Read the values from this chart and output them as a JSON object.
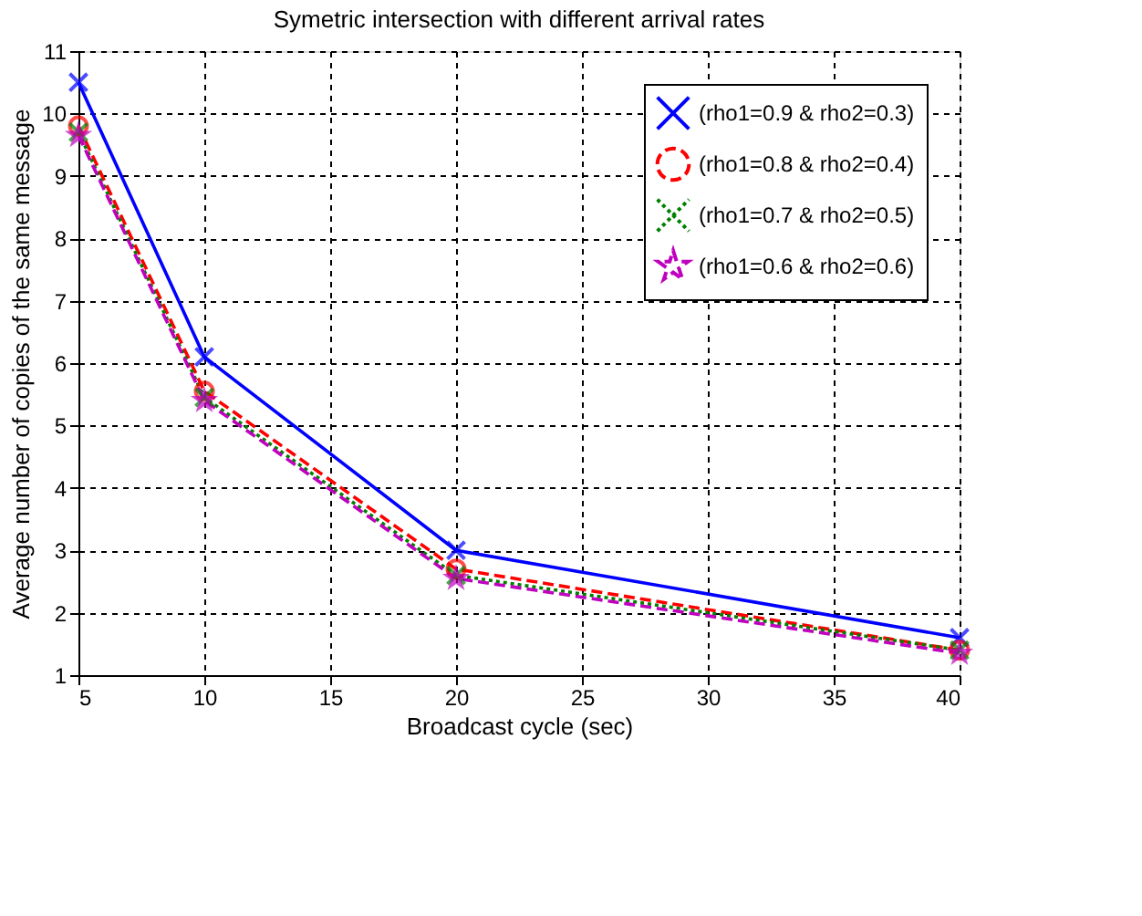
{
  "chart_data": {
    "type": "line",
    "title": "Symetric intersection with different arrival rates",
    "xlabel": "Broadcast cycle (sec)",
    "ylabel": "Average number of copies of the same message",
    "x": [
      5,
      10,
      20,
      40
    ],
    "series": [
      {
        "name": "(rho1=0.9 & rho2=0.3)",
        "color": "#0000ff",
        "values": [
          10.5,
          6.1,
          3.0,
          1.6
        ],
        "marker": "cross",
        "line_style": "solid"
      },
      {
        "name": "(rho1=0.8 & rho2=0.4)",
        "color": "#ff0000",
        "values": [
          9.8,
          5.55,
          2.7,
          1.4
        ],
        "marker": "circle",
        "line_style": "dashed"
      },
      {
        "name": "(rho1=0.7 & rho2=0.5)",
        "color": "#008000",
        "values": [
          9.7,
          5.45,
          2.6,
          1.4
        ],
        "marker": "cross",
        "line_style": "dotted"
      },
      {
        "name": "(rho1=0.6 & rho2=0.6)",
        "color": "#bf00bf",
        "values": [
          9.65,
          5.4,
          2.55,
          1.35
        ],
        "marker": "star",
        "line_style": "dashed"
      }
    ],
    "xlim": [
      5,
      40
    ],
    "xticks": [
      5,
      10,
      15,
      20,
      25,
      30,
      35,
      40
    ],
    "ylim": [
      1,
      11
    ],
    "yticks": [
      1,
      2,
      3,
      4,
      5,
      6,
      7,
      8,
      9,
      10,
      11
    ],
    "grid": true,
    "legend": "top right"
  }
}
